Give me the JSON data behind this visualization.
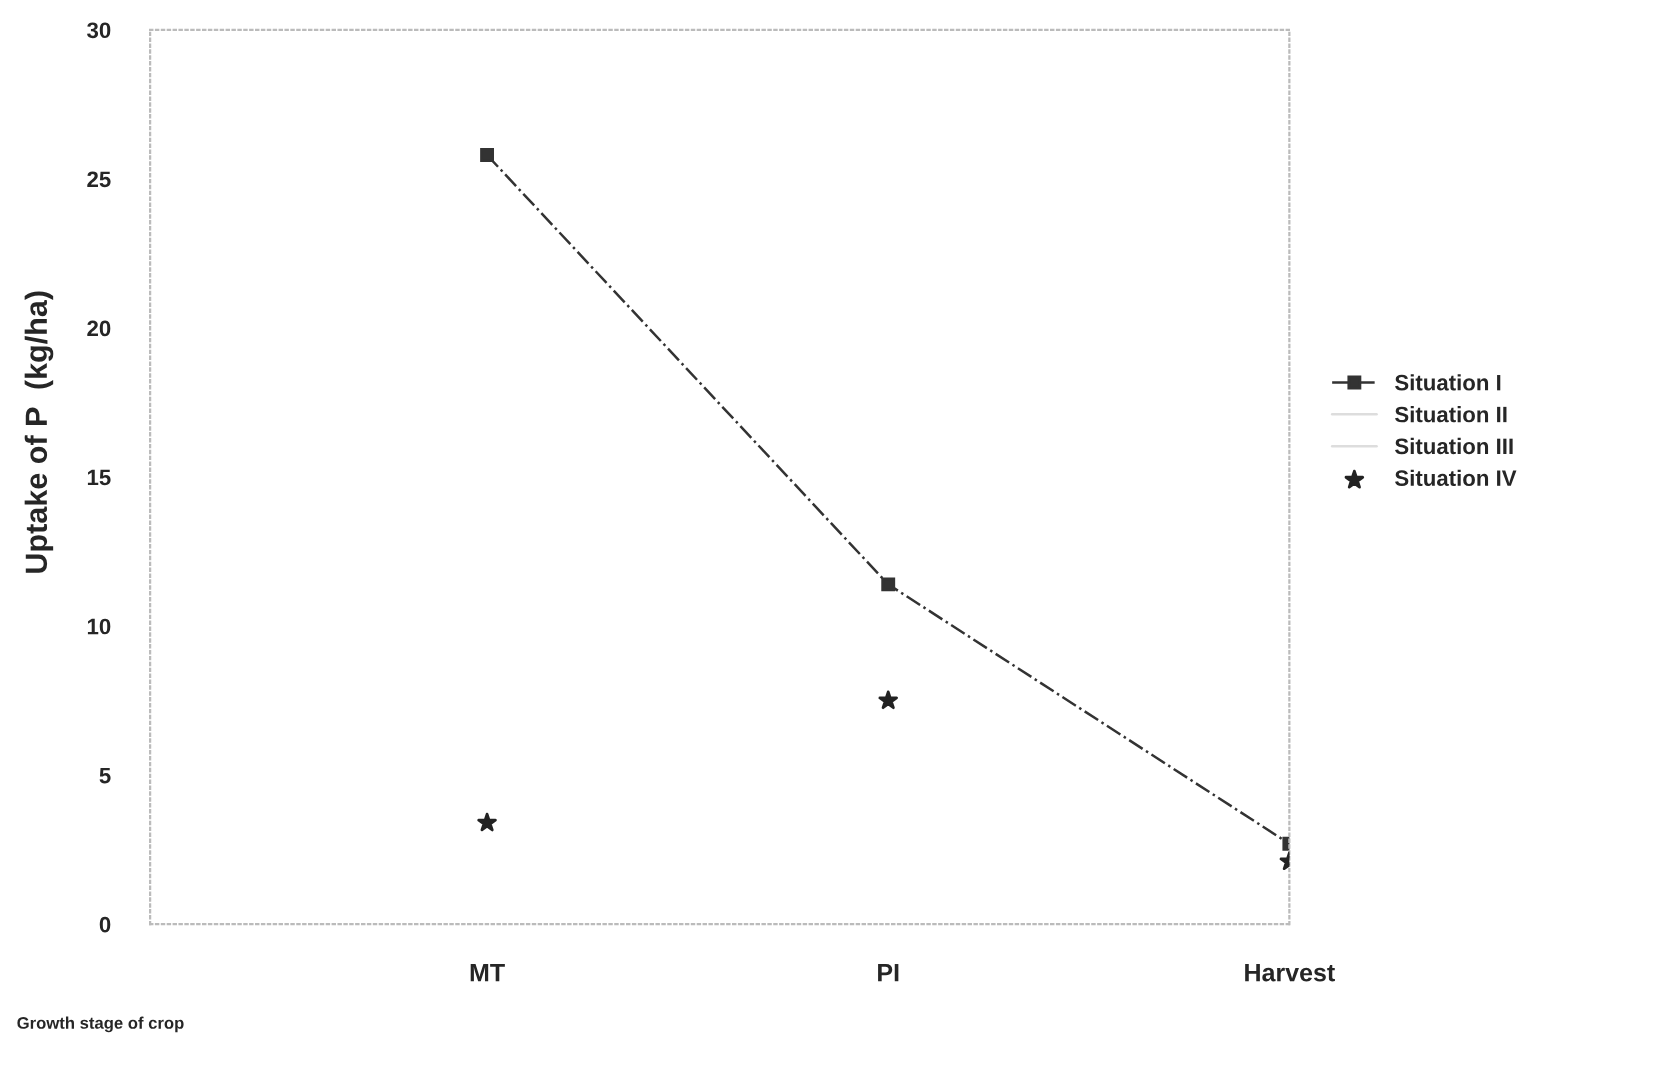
{
  "chart_data": {
    "type": "line",
    "ylabel": "Uptake of P  (kg/ha)",
    "xlabel": "Growth stage of crop",
    "categories": [
      "MT",
      "PI",
      "Harvest"
    ],
    "series": [
      {
        "name": "Situation I",
        "color": "#333333",
        "values": [
          25.8,
          11.4,
          2.7
        ],
        "marker": "square",
        "line_style": "dashdot"
      },
      {
        "name": "Situation II",
        "color": "#dddddd",
        "values": [
          null,
          null,
          null
        ],
        "marker": "none"
      },
      {
        "name": "Situation III",
        "color": "#dddddd",
        "values": [
          null,
          null,
          null
        ],
        "marker": "none"
      },
      {
        "name": "Situation IV",
        "type": "scatter",
        "color": "#222222",
        "values": [
          3.4,
          7.5,
          2.1
        ],
        "marker": "star"
      }
    ],
    "ylim": [
      0,
      30
    ],
    "yticks": [
      0,
      5,
      10,
      15,
      20,
      25,
      30
    ],
    "grid": false,
    "legend": "right"
  }
}
